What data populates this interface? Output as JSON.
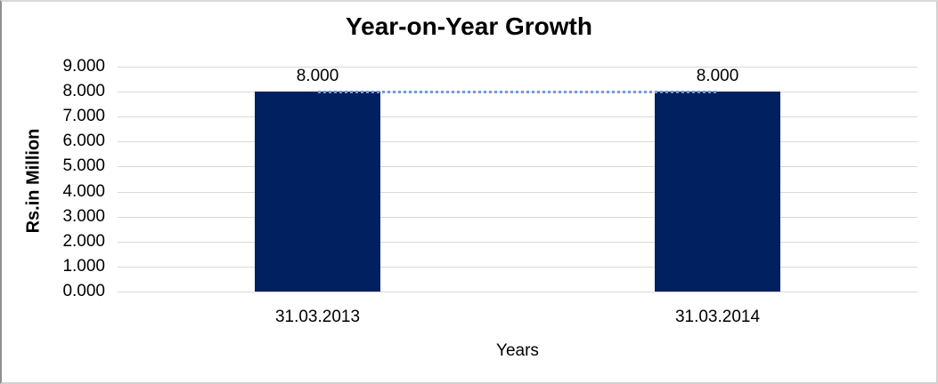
{
  "chart_data": {
    "type": "bar",
    "title": "Year-on-Year Growth",
    "xlabel": "Years",
    "ylabel": "Rs.in Million",
    "categories": [
      "31.03.2013",
      "31.03.2014"
    ],
    "values": [
      8.0,
      8.0
    ],
    "data_labels": [
      "8.000",
      "8.000"
    ],
    "yticks": [
      "9.000",
      "8.000",
      "7.000",
      "6.000",
      "5.000",
      "4.000",
      "3.000",
      "2.000",
      "1.000",
      "0.000"
    ],
    "ylim": [
      0,
      9
    ],
    "grid": "horizontal",
    "legend": "none",
    "trendline": {
      "style": "dotted",
      "values": [
        8.0,
        8.0
      ]
    },
    "colors": {
      "bar": "#002060",
      "trendline": "#6f9fd5",
      "gridline": "#d9d9d9",
      "text": "#000000",
      "background": "#ffffff",
      "frame_border": "#d0d0d0"
    }
  }
}
